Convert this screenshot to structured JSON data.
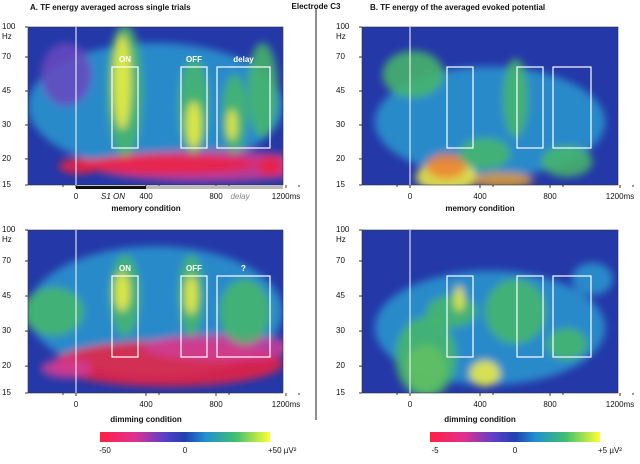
{
  "title": "Electrode C3",
  "panels": [
    {
      "heading": "A. TF energy averaged across single trials",
      "plots": [
        {
          "condition": "memory condition",
          "box_labels": [
            "ON",
            "OFF",
            "delay"
          ]
        },
        {
          "condition": "dimming condition",
          "box_labels": [
            "ON",
            "OFF",
            "?"
          ]
        }
      ],
      "colorbar": {
        "labels": [
          "-50",
          "0",
          "+50 µV²"
        ]
      }
    },
    {
      "heading": "B. TF energy of the averaged evoked potential",
      "plots": [
        {
          "condition": "memory condition"
        },
        {
          "condition": "dimming condition"
        }
      ],
      "colorbar": {
        "labels": [
          "-5",
          "0",
          "+5 µV²"
        ]
      }
    }
  ],
  "y_axis": {
    "unit": "Hz",
    "ticks": [
      "100",
      "70",
      "45",
      "30",
      "20",
      "15"
    ]
  },
  "x_axis": {
    "ticks": [
      "0",
      "400",
      "800",
      "1200ms"
    ]
  },
  "stimulus_bar": {
    "on_label": "S1 ON",
    "delay_label": "delay"
  }
}
